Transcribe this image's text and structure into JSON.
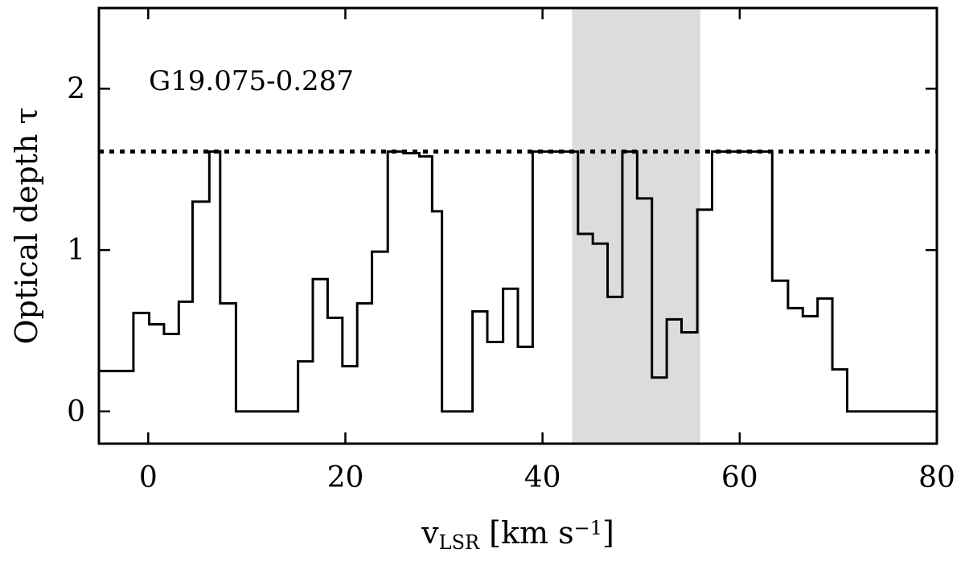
{
  "chart_data": {
    "type": "line",
    "step": true,
    "source_label": "G19.075-0.287",
    "xlabel": {
      "main": "v",
      "sub": "LSR",
      "unit_open": " [km s",
      "unit_exp": "−1",
      "unit_close": "]"
    },
    "ylabel": "Optical depth τ",
    "xlim": [
      -5,
      80
    ],
    "ylim": [
      -0.2,
      2.5
    ],
    "xticks": [
      0,
      20,
      40,
      60,
      80
    ],
    "yticks": [
      0,
      1,
      2
    ],
    "xtick_labels": [
      "0",
      "20",
      "40",
      "60",
      "80"
    ],
    "ytick_labels": [
      "0",
      "1",
      "2"
    ],
    "reference_line": {
      "y": 1.61,
      "style": "dotted"
    },
    "shaded_region": {
      "x0": 43.0,
      "x1": 56.0,
      "color": "#dcdcdc"
    },
    "line_color": "#000000",
    "series": [
      {
        "x": [
          -5.0,
          -3.4,
          -1.5,
          0.1,
          1.6,
          3.1,
          4.5,
          6.2,
          7.3,
          8.9,
          10.5,
          12.0,
          13.6,
          15.2,
          16.7,
          18.2,
          19.7,
          21.2,
          22.7,
          24.3,
          25.9,
          27.5,
          28.8,
          29.8,
          31.4,
          32.9,
          34.4,
          36.0,
          37.5,
          39.0,
          40.6,
          42.0,
          43.6,
          45.1,
          46.6,
          48.1,
          49.6,
          51.1,
          52.6,
          54.1,
          55.7,
          57.2,
          58.7,
          60.1,
          61.7,
          63.3,
          64.9,
          66.4,
          67.9,
          69.4,
          70.9,
          72.2,
          73.7,
          75.3,
          76.9,
          78.4,
          80.0
        ],
        "y": [
          0.25,
          0.25,
          0.61,
          0.54,
          0.48,
          0.68,
          1.3,
          1.61,
          0.67,
          0.0,
          0.0,
          0.0,
          0.0,
          0.31,
          0.82,
          0.58,
          0.28,
          0.67,
          0.99,
          1.61,
          1.6,
          1.58,
          1.24,
          0.0,
          0.0,
          0.62,
          0.43,
          0.76,
          0.4,
          1.61,
          1.61,
          1.61,
          1.1,
          1.04,
          0.71,
          1.61,
          1.32,
          0.21,
          0.57,
          0.49,
          1.25,
          1.61,
          1.61,
          1.61,
          1.61,
          0.81,
          0.64,
          0.59,
          0.7,
          0.26,
          0.0,
          0.0,
          0.0,
          0.0,
          0.0,
          0.0,
          0.0
        ]
      }
    ]
  }
}
